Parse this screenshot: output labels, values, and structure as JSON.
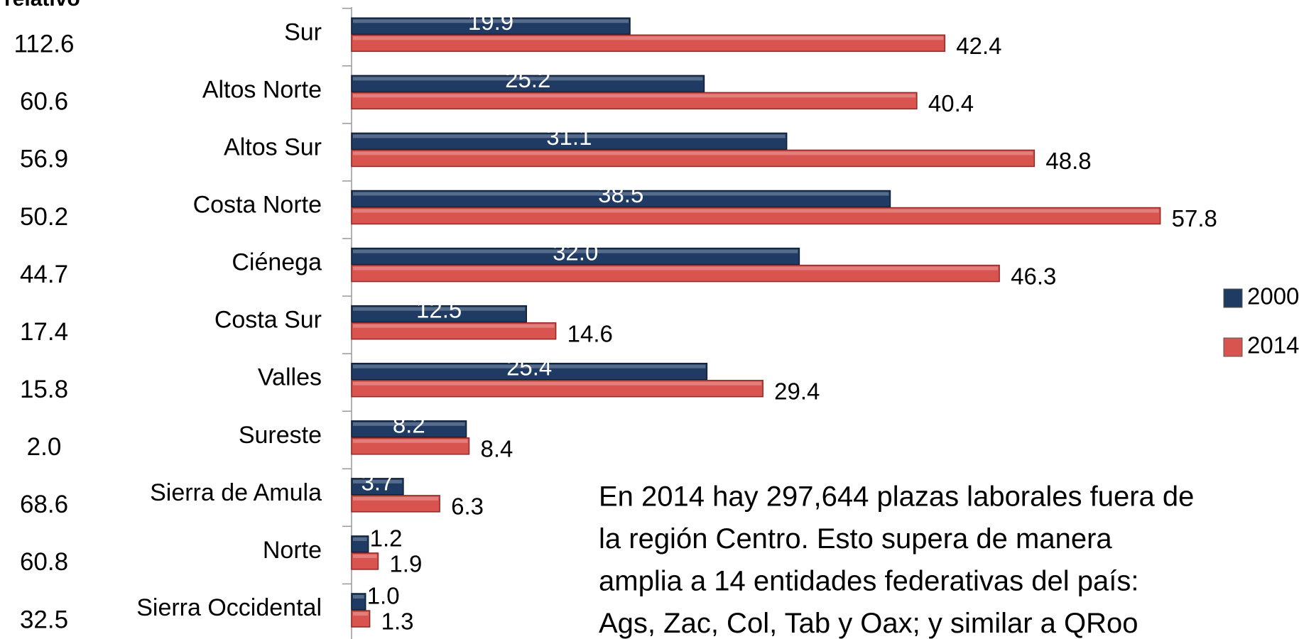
{
  "chart_data": {
    "type": "bar",
    "orientation": "horizontal",
    "side_column": {
      "title": "relativo",
      "values": [
        "112.6",
        "60.6",
        "56.9",
        "50.2",
        "44.7",
        "17.4",
        "15.8",
        "2.0",
        "68.6",
        "60.8",
        "32.5"
      ]
    },
    "categories": [
      "Sur",
      "Altos Norte",
      "Altos Sur",
      "Costa Norte",
      "Ciénega",
      "Costa Sur",
      "Valles",
      "Sureste",
      "Sierra de Amula",
      "Norte",
      "Sierra Occidental"
    ],
    "series": [
      {
        "name": "2000",
        "color": "#1f3b63",
        "values": [
          19.9,
          25.2,
          31.1,
          38.5,
          32.0,
          12.5,
          25.4,
          8.2,
          3.7,
          1.2,
          1.0
        ],
        "value_labels": [
          "19.9",
          "25.2",
          "31.1",
          "38.5",
          "32.0",
          "12.5",
          "25.4",
          "8.2",
          "3.7",
          "1.2",
          "1.0"
        ]
      },
      {
        "name": "2014",
        "color": "#d9534f",
        "values": [
          42.4,
          40.4,
          48.8,
          57.8,
          46.3,
          14.6,
          29.4,
          8.4,
          6.3,
          1.9,
          1.3
        ],
        "value_labels": [
          "42.4",
          "40.4",
          "48.8",
          "57.8",
          "46.3",
          "14.6",
          "29.4",
          "8.4",
          "6.3",
          "1.9",
          "1.3"
        ]
      }
    ],
    "xlim": [
      0,
      60
    ],
    "annotation": [
      "En 2014 hay 297,644  plazas laborales fuera de",
      "la región Centro. Esto supera de manera",
      "amplia a 14 entidades federativas del país:",
      "Ags, Zac, Col, Tab y Oax; y similar a  QRoo"
    ]
  }
}
